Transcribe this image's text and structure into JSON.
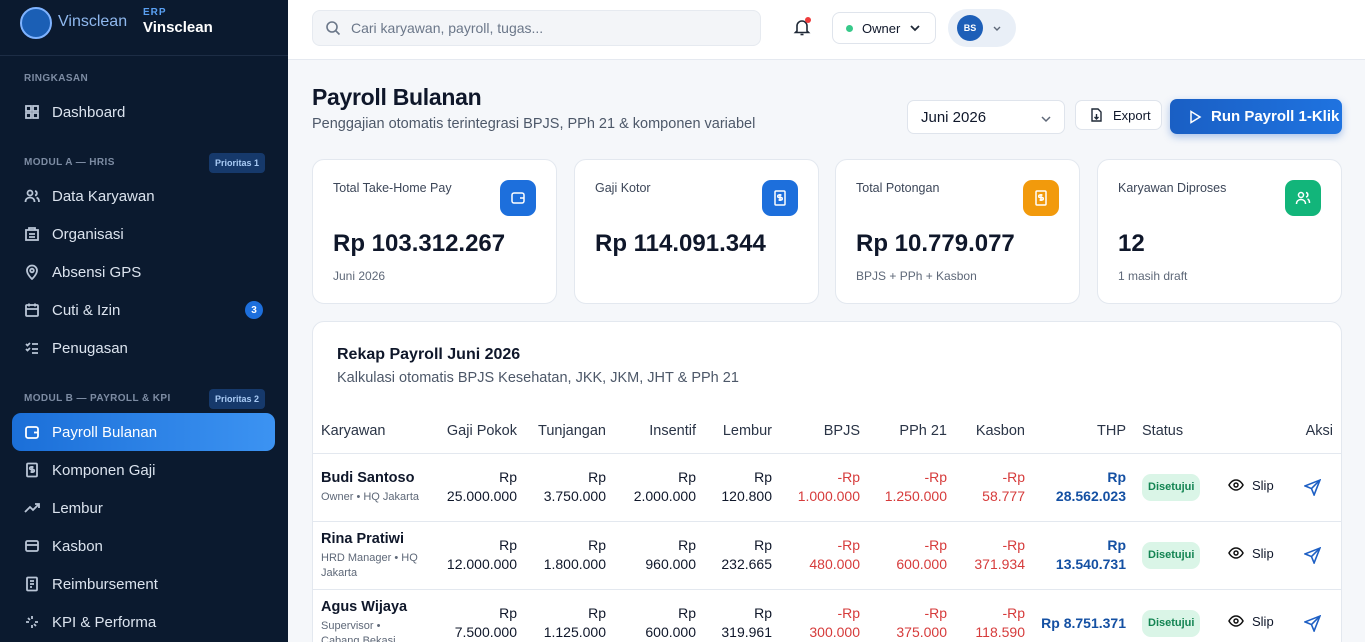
{
  "sidebar": {
    "brand": {
      "logo_text": "Vinsclean",
      "tag": "ERP",
      "name": "Vinsclean"
    },
    "sections": [
      {
        "title": "RINGKASAN",
        "items": [
          {
            "label": "Dashboard"
          }
        ]
      },
      {
        "title": "MODUL A — HRIS",
        "badge": "Prioritas 1",
        "items": [
          {
            "label": "Data Karyawan"
          },
          {
            "label": "Organisasi"
          },
          {
            "label": "Absensi GPS"
          },
          {
            "label": "Cuti & Izin",
            "count": "3"
          },
          {
            "label": "Penugasan"
          }
        ]
      },
      {
        "title": "MODUL B — PAYROLL & KPI",
        "badge": "Prioritas 2",
        "items": [
          {
            "label": "Payroll Bulanan",
            "active": true
          },
          {
            "label": "Komponen Gaji"
          },
          {
            "label": "Lembur"
          },
          {
            "label": "Kasbon"
          },
          {
            "label": "Reimbursement"
          },
          {
            "label": "KPI & Performa"
          }
        ]
      }
    ]
  },
  "topbar": {
    "search_placeholder": "Cari karyawan, payroll, tugas...",
    "role": "Owner",
    "avatar": "BS"
  },
  "header": {
    "title": "Payroll Bulanan",
    "subtitle": "Penggajian otomatis terintegrasi BPJS, PPh 21 & komponen variabel",
    "period": "Juni 2026",
    "export": "Export",
    "run": "Run Payroll 1-Klik"
  },
  "stats": [
    {
      "label": "Total Take-Home Pay",
      "value": "Rp 103.312.267",
      "note": "Juni 2026",
      "color": "#1d6fdc"
    },
    {
      "label": "Gaji Kotor",
      "value": "Rp 114.091.344",
      "color": "#1d6fdc"
    },
    {
      "label": "Total Potongan",
      "value": "Rp 10.779.077",
      "note": "BPJS + PPh + Kasbon",
      "color": "#f29a0c"
    },
    {
      "label": "Karyawan Diproses",
      "value": "12",
      "note": "1 masih draft",
      "color": "#12b57a"
    }
  ],
  "table": {
    "title": "Rekap Payroll Juni 2026",
    "subtitle": "Kalkulasi otomatis BPJS Kesehatan, JKK, JKM, JHT & PPh 21",
    "columns": [
      "Karyawan",
      "Gaji Pokok",
      "Tunjangan",
      "Insentif",
      "Lembur",
      "BPJS",
      "PPh 21",
      "Kasbon",
      "THP",
      "Status",
      "Aksi"
    ],
    "rows": [
      {
        "name": "Budi Santoso",
        "role": "Owner • HQ Jakarta",
        "amounts": [
          "Rp\n25.000.000",
          "Rp\n3.750.000",
          "Rp\n2.000.000",
          "Rp\n120.800",
          "-Rp\n1.000.000",
          "-Rp\n1.250.000",
          "-Rp\n58.777",
          "Rp\n28.562.023"
        ],
        "status": "Disetujui",
        "slip": "Slip"
      },
      {
        "name": "Rina Pratiwi",
        "role": "HRD Manager • HQ Jakarta",
        "amounts": [
          "Rp\n12.000.000",
          "Rp\n1.800.000",
          "Rp\n960.000",
          "Rp\n232.665",
          "-Rp\n480.000",
          "-Rp\n600.000",
          "-Rp\n371.934",
          "Rp\n13.540.731"
        ],
        "status": "Disetujui",
        "slip": "Slip"
      },
      {
        "name": "Agus Wijaya",
        "role": "Supervisor • Cabang Bekasi",
        "amounts": [
          "Rp\n7.500.000",
          "Rp\n1.125.000",
          "Rp\n600.000",
          "Rp\n319.961",
          "-Rp\n300.000",
          "-Rp\n375.000",
          "-Rp\n118.590",
          "Rp 8.751.371"
        ],
        "status": "Disetujui",
        "slip": "Slip"
      }
    ]
  }
}
